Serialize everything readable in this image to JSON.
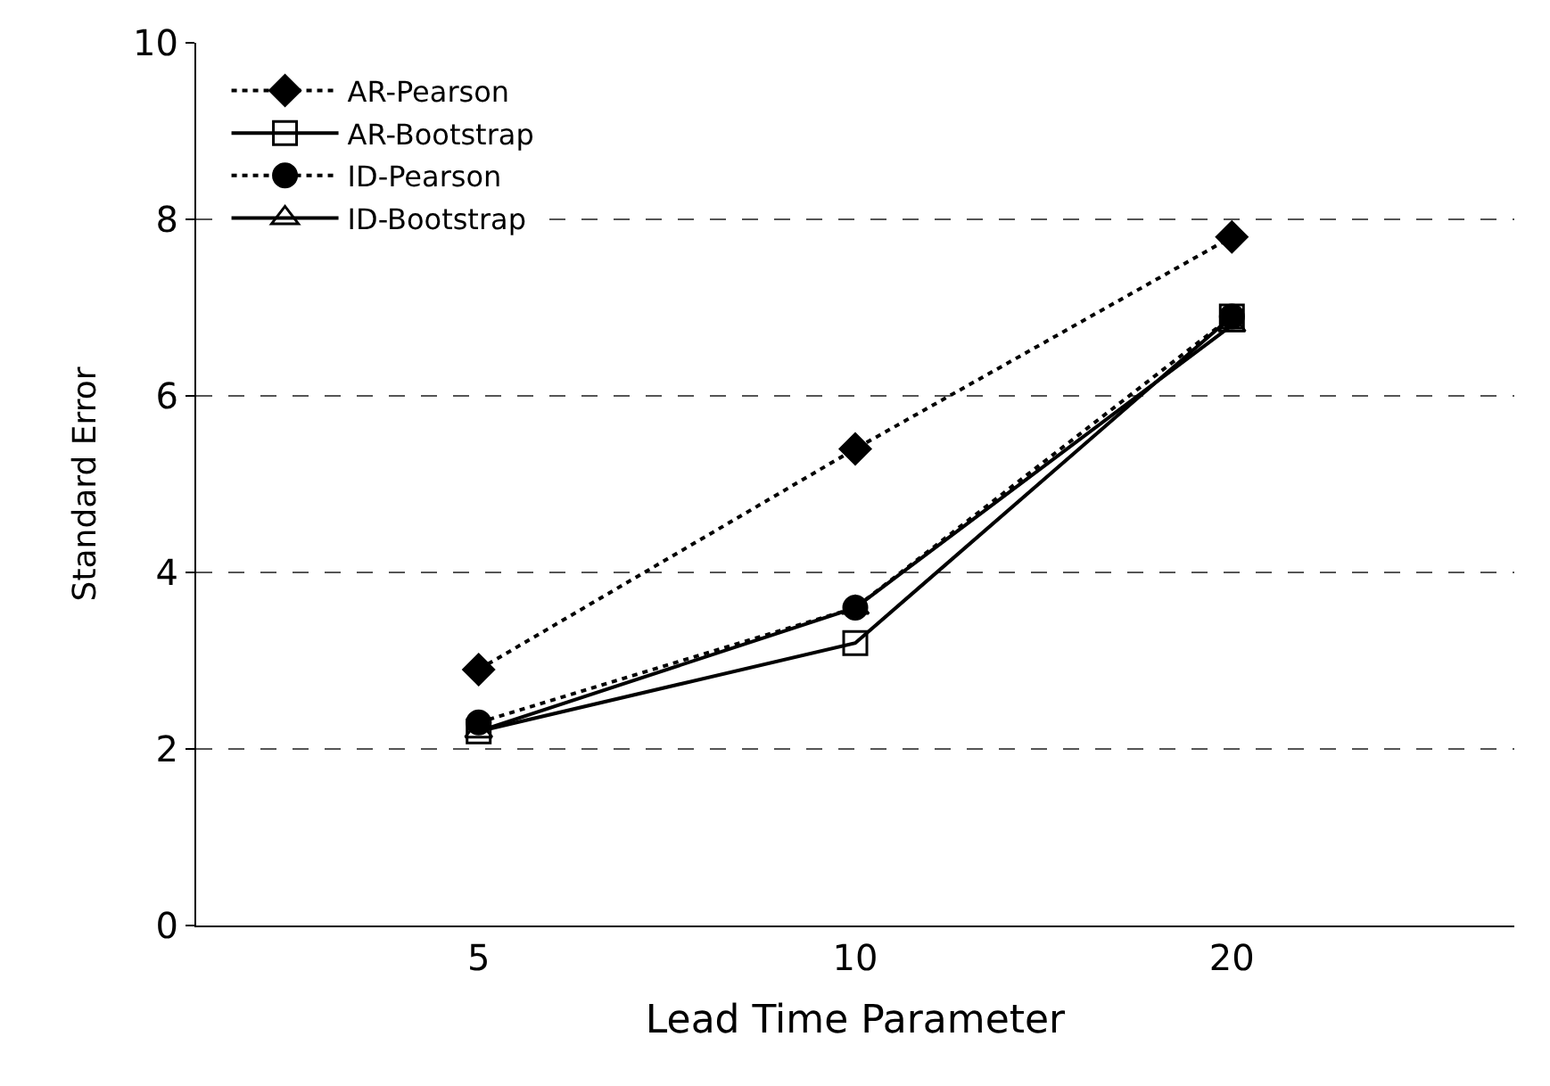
{
  "chart_data": {
    "type": "line",
    "xlabel": "Lead Time Parameter",
    "ylabel": "Standard Error",
    "categories": [
      "5",
      "10",
      "20"
    ],
    "series": [
      {
        "name": "AR-Pearson",
        "color": "#000000",
        "values": [
          2.9,
          5.4,
          7.8
        ],
        "marker": "diamond",
        "line_style": "dotted"
      },
      {
        "name": "AR-Bootstrap",
        "color": "#000000",
        "values": [
          2.2,
          3.2,
          6.9
        ],
        "marker": "square-open",
        "line_style": "solid"
      },
      {
        "name": "ID-Pearson",
        "color": "#000000",
        "values": [
          2.3,
          3.6,
          6.9
        ],
        "marker": "circle",
        "line_style": "dotted"
      },
      {
        "name": "ID-Bootstrap",
        "color": "#000000",
        "values": [
          2.2,
          3.6,
          6.8
        ],
        "marker": "triangle-up-open",
        "line_style": "solid"
      }
    ],
    "ylim": [
      0,
      10
    ],
    "yticks": [
      0,
      2,
      4,
      6,
      8,
      10
    ],
    "grid": "y",
    "legend": "top left"
  }
}
